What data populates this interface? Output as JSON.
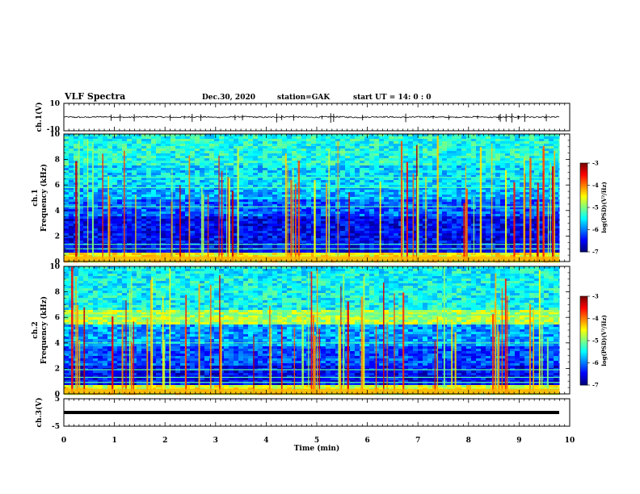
{
  "header": {
    "title": "VLF Spectra",
    "date": "Dec.30, 2020",
    "station": "station=GAK",
    "start_ut": "start  UT =   14: 0  : 0"
  },
  "colors": {
    "colormap": [
      "#00007f",
      "#0000ff",
      "#007fff",
      "#00ffff",
      "#7fff7f",
      "#ffff00",
      "#ff7f00",
      "#ff0000",
      "#7f0000"
    ],
    "waveform": "#000000"
  },
  "chart_data": [
    {
      "type": "line",
      "panel": "ch1-waveform",
      "ylabel": "ch.1(V)",
      "ylim": [
        -10,
        10
      ],
      "y_tick_labels": [
        "10",
        "-10"
      ],
      "mean_value": 0,
      "x_range_min": [
        0,
        9.8
      ]
    },
    {
      "type": "heatmap",
      "panel": "ch1-spectrogram",
      "ylabel_line1": "ch.1",
      "ylabel_line2": "Frequency (kHz)",
      "ylim": [
        0,
        10
      ],
      "y_tick_labels": [
        "0",
        "2",
        "4",
        "6",
        "8",
        "10"
      ],
      "colorbar": {
        "label": "log(PSD)(V²/Hz)",
        "range": [
          -7,
          -3
        ],
        "tick_labels": [
          "-3",
          "-4",
          "-5",
          "-6",
          "-7"
        ]
      }
    },
    {
      "type": "heatmap",
      "panel": "ch2-spectrogram",
      "ylabel_line1": "ch.2",
      "ylabel_line2": "Frequency (kHz)",
      "ylim": [
        0,
        10
      ],
      "y_tick_labels": [
        "0",
        "2",
        "4",
        "6",
        "8",
        "10"
      ],
      "colorbar": {
        "label": "log(PSD)(V²/Hz)",
        "range": [
          -7,
          -3
        ],
        "tick_labels": [
          "-3",
          "-4",
          "-5",
          "-6",
          "-7"
        ]
      }
    },
    {
      "type": "line",
      "panel": "ch3-waveform",
      "ylabel": "ch.3(V)",
      "ylim": [
        -5,
        5
      ],
      "y_tick_labels": [
        "5",
        "-5"
      ],
      "constant_value": 0
    }
  ],
  "xaxis": {
    "label": "Time (min)",
    "range": [
      0,
      10
    ],
    "tick_labels": [
      "0",
      "1",
      "2",
      "3",
      "4",
      "5",
      "6",
      "7",
      "8",
      "9",
      "10"
    ]
  }
}
